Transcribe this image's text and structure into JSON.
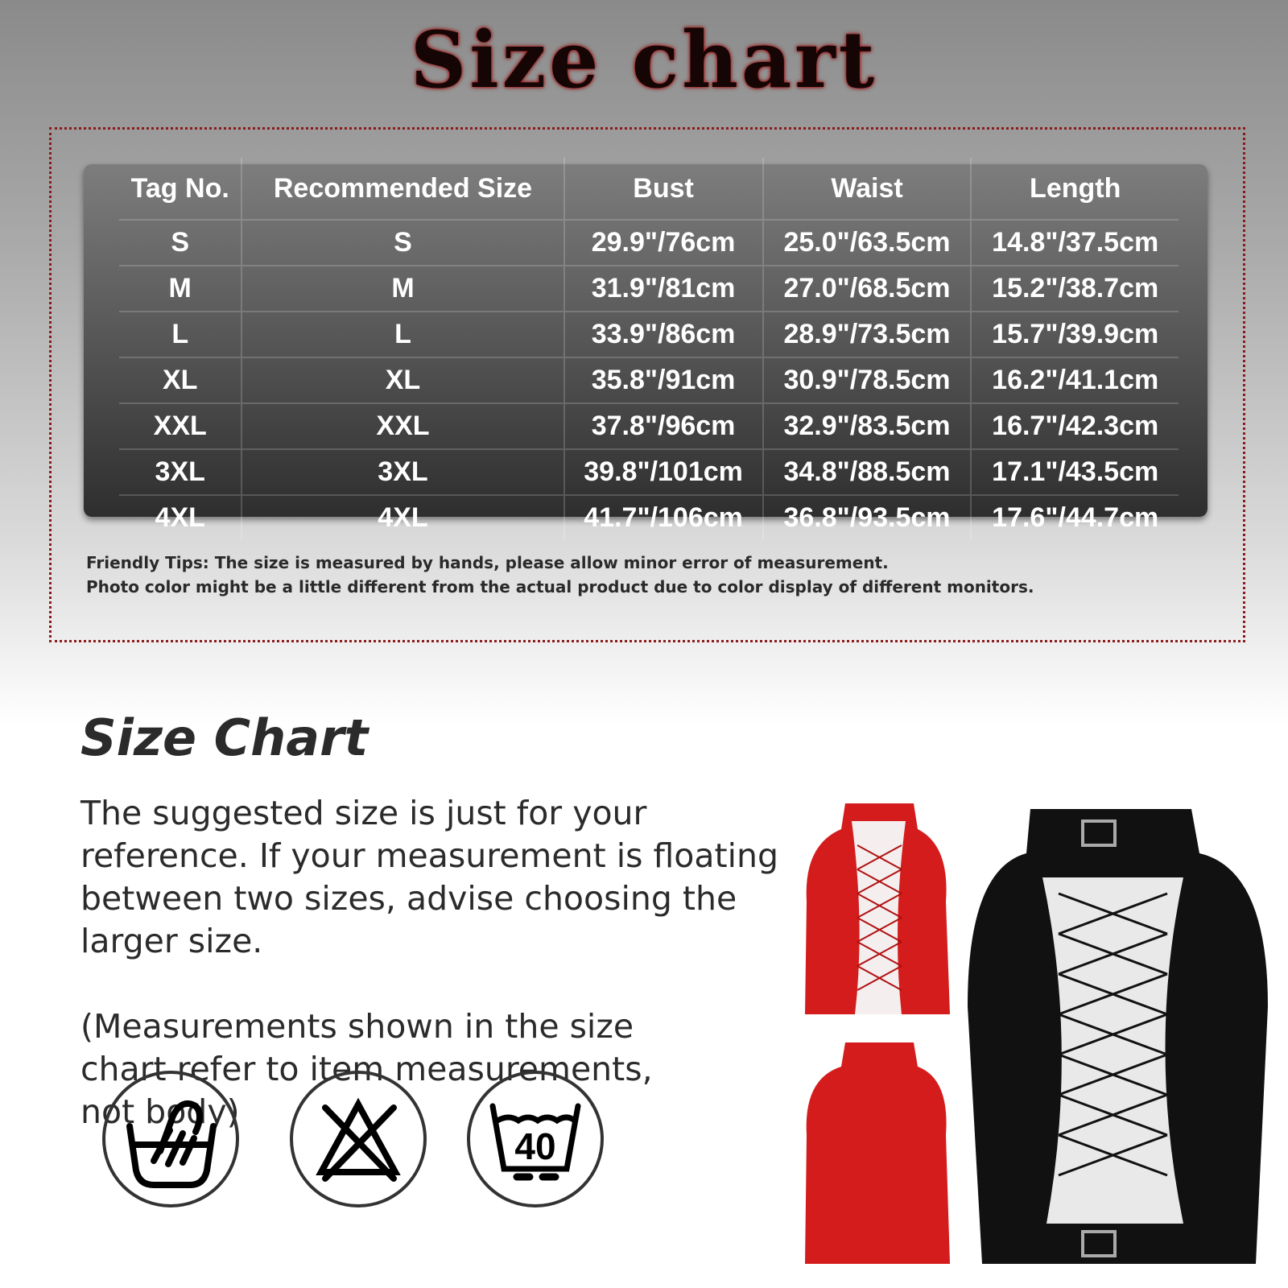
{
  "header": {
    "title": "Size chart"
  },
  "table": {
    "columns": [
      "Tag No.",
      "Recommended Size",
      "Bust",
      "Waist",
      "Length"
    ],
    "rows": [
      [
        "S",
        "S",
        "29.9\"/76cm",
        "25.0\"/63.5cm",
        "14.8\"/37.5cm"
      ],
      [
        "M",
        "M",
        "31.9\"/81cm",
        "27.0\"/68.5cm",
        "15.2\"/38.7cm"
      ],
      [
        "L",
        "L",
        "33.9\"/86cm",
        "28.9\"/73.5cm",
        "15.7\"/39.9cm"
      ],
      [
        "XL",
        "XL",
        "35.8\"/91cm",
        "30.9\"/78.5cm",
        "16.2\"/41.1cm"
      ],
      [
        "XXL",
        "XXL",
        "37.8\"/96cm",
        "32.9\"/83.5cm",
        "16.7\"/42.3cm"
      ],
      [
        "3XL",
        "3XL",
        "39.8\"/101cm",
        "34.8\"/88.5cm",
        "17.1\"/43.5cm"
      ],
      [
        "4XL",
        "4XL",
        "41.7\"/106cm",
        "36.8\"/93.5cm",
        "17.6\"/44.7cm"
      ]
    ]
  },
  "tips": [
    "Friendly Tips: The size is measured by hands, please allow minor error of measurement.",
    "Photo color might be a little different from the actual product due to color display of different monitors."
  ],
  "section": {
    "title": "Size Chart",
    "paragraphs": [
      "The suggested size is just for your reference. If your measurement is floating between two sizes, advise choosing the larger size.",
      "(Measurements shown in the size chart refer to item measurements, not body)"
    ]
  },
  "care_icons": [
    {
      "icon": "hand-wash-icon"
    },
    {
      "icon": "do-not-bleach-icon"
    },
    {
      "icon": "wash-40-icon",
      "label": "40"
    }
  ],
  "colors": {
    "title_accent": "#b01818",
    "frame": "#8b1a1a",
    "red_top": "#d81e1e",
    "black_top": "#111111"
  }
}
